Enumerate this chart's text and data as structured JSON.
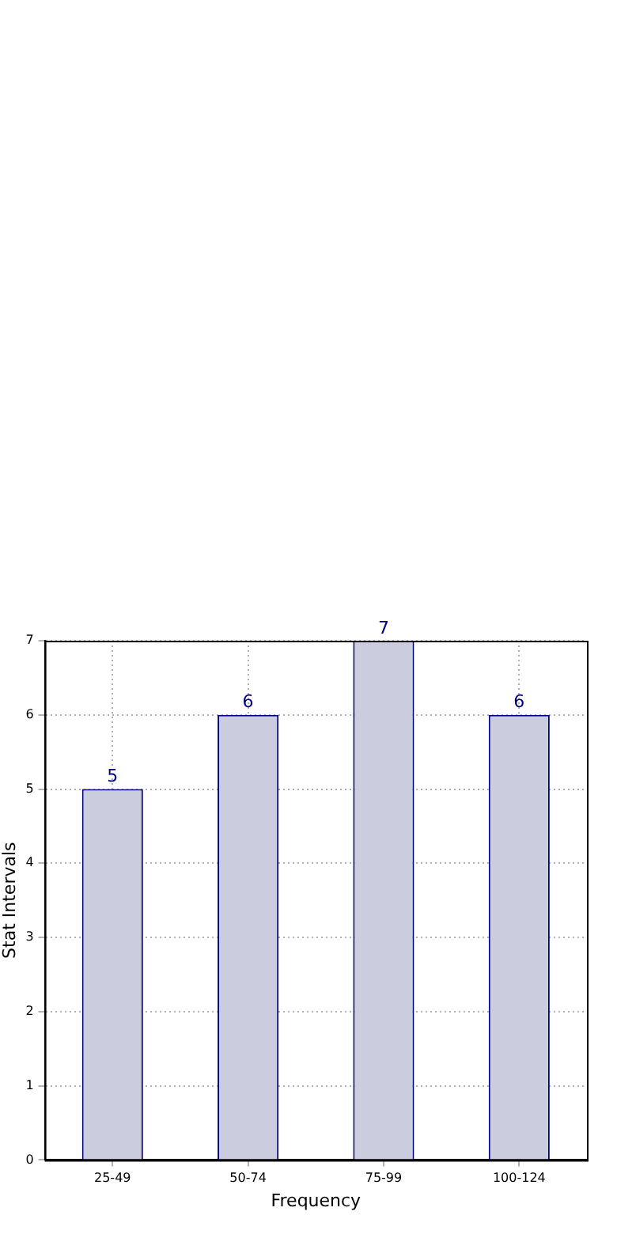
{
  "chart_data": {
    "type": "bar",
    "xlabel": "Frequency",
    "ylabel": "Stat Intervals",
    "categories": [
      "25-49",
      "50-74",
      "75-99",
      "100-124"
    ],
    "values": [
      5,
      6,
      7,
      6
    ],
    "color": "#ccccdf",
    "ylim": [
      0,
      7
    ],
    "yticks": [
      0,
      1,
      2,
      3,
      4,
      5,
      6,
      7
    ],
    "grid": true,
    "data_labels": true,
    "legend": false
  }
}
